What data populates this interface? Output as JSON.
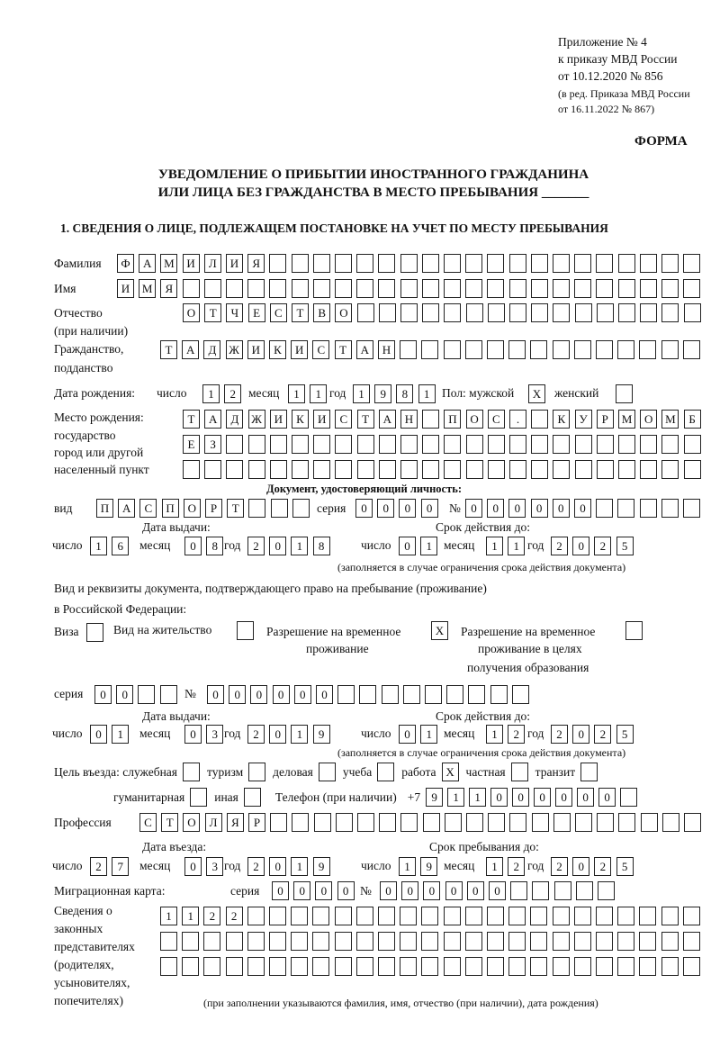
{
  "header": {
    "appendix": "Приложение № 4",
    "order": "к приказу МВД России",
    "order_date": "от 10.12.2020 № 856",
    "edition1": "(в ред. Приказа МВД России",
    "edition2": "от 16.11.2022 № 867)",
    "form": "ФОРМА",
    "title1": "УВЕДОМЛЕНИЕ О ПРИБЫТИИ ИНОСТРАННОГО ГРАЖДАНИНА",
    "title2": "ИЛИ ЛИЦА БЕЗ ГРАЖДАНСТВА В МЕСТО ПРЕБЫВАНИЯ _______",
    "section1": "1. СВЕДЕНИЯ О ЛИЦЕ, ПОДЛЕЖАЩЕМ ПОСТАНОВКЕ НА УЧЕТ ПО МЕСТУ ПРЕБЫВАНИЯ"
  },
  "labels": {
    "surname": "Фамилия",
    "name": "Имя",
    "patronymic1": "Отчество",
    "patronymic2": "(при наличии)",
    "citizenship1": "Гражданство,",
    "citizenship2": "подданство",
    "birth_date": "Дата рождения:",
    "day": "число",
    "month": "месяц",
    "year": "год",
    "sex": "Пол: мужской",
    "female": "женский",
    "birth_place1": "Место рождения:",
    "birth_place2": "государство",
    "birth_place3": "город или другой",
    "birth_place4": "населенный пункт",
    "id_doc": "Документ, удостоверяющий личность:",
    "kind": "вид",
    "series": "серия",
    "number": "№",
    "issue_date": "Дата выдачи:",
    "valid_until": "Срок действия до:",
    "valid_note": "(заполняется в случае ограничения срока действия документа)",
    "right_doc1": "Вид и реквизиты документа, подтверждающего право на пребывание (проживание)",
    "right_doc2": "в Российской Федерации:",
    "visa": "Виза",
    "residence": "Вид на жительство",
    "temp_res1": "Разрешение на временное",
    "temp_res2": "проживание",
    "temp_edu1": "Разрешение на временное",
    "temp_edu2": "проживание в целях",
    "temp_edu3": "получения образования",
    "purpose": "Цель въезда: служебная",
    "tourism": "туризм",
    "business": "деловая",
    "study": "учеба",
    "work": "работа",
    "private": "частная",
    "transit": "транзит",
    "humanitarian": "гуманитарная",
    "other": "иная",
    "phone": "Телефон (при наличии)",
    "phone_prefix": "+7",
    "profession": "Профессия",
    "entry_date": "Дата въезда:",
    "stay_until": "Срок пребывания до:",
    "migration_card": "Миграционная карта:",
    "reps1": "Сведения о",
    "reps2": "законных",
    "reps3": "представителях",
    "reps4": "(родителях,",
    "reps5": "усыновителях,",
    "reps6": "попечителях)",
    "reps_note": "(при заполнении указываются фамилия, имя, отчество (при наличии), дата рождения)"
  },
  "fields": {
    "surname": [
      "Ф",
      "А",
      "М",
      "И",
      "Л",
      "И",
      "Я"
    ],
    "name": [
      "И",
      "М",
      "Я"
    ],
    "patronymic": [
      "О",
      "Т",
      "Ч",
      "Е",
      "С",
      "Т",
      "В",
      "О"
    ],
    "citizenship": [
      "Т",
      "А",
      "Д",
      "Ж",
      "И",
      "К",
      "И",
      "С",
      "Т",
      "А",
      "Н"
    ],
    "birth_day": [
      "1",
      "2"
    ],
    "birth_month": [
      "1",
      "1"
    ],
    "birth_year": [
      "1",
      "9",
      "8",
      "1"
    ],
    "sex_male": [
      "X"
    ],
    "sex_female": [
      ""
    ],
    "birth_place_1": [
      "Т",
      "А",
      "Д",
      "Ж",
      "И",
      "К",
      "И",
      "С",
      "Т",
      "А",
      "Н",
      "",
      "П",
      "О",
      "С",
      ".",
      "",
      "К",
      "У",
      "Р",
      "М",
      "О",
      "М",
      "Б"
    ],
    "birth_place_2": [
      "Е",
      "З"
    ],
    "birth_place_3": [],
    "doc_kind": [
      "П",
      "А",
      "С",
      "П",
      "О",
      "Р",
      "Т"
    ],
    "doc_series": [
      "0",
      "0",
      "0",
      "0"
    ],
    "doc_number": [
      "0",
      "0",
      "0",
      "0",
      "0",
      "0"
    ],
    "doc_issue_day": [
      "1",
      "6"
    ],
    "doc_issue_month": [
      "0",
      "8"
    ],
    "doc_issue_year": [
      "2",
      "0",
      "1",
      "8"
    ],
    "doc_valid_day": [
      "0",
      "1"
    ],
    "doc_valid_month": [
      "1",
      "1"
    ],
    "doc_valid_year": [
      "2",
      "0",
      "2",
      "5"
    ],
    "visa": [
      ""
    ],
    "residence": [
      ""
    ],
    "temp_res": [
      "X"
    ],
    "temp_edu": [
      ""
    ],
    "right_series": [
      "0",
      "0"
    ],
    "right_number": [
      "0",
      "0",
      "0",
      "0",
      "0",
      "0"
    ],
    "right_issue_day": [
      "0",
      "1"
    ],
    "right_issue_month": [
      "0",
      "3"
    ],
    "right_issue_year": [
      "2",
      "0",
      "1",
      "9"
    ],
    "right_valid_day": [
      "0",
      "1"
    ],
    "right_valid_month": [
      "1",
      "2"
    ],
    "right_valid_year": [
      "2",
      "0",
      "2",
      "5"
    ],
    "p_official": [
      ""
    ],
    "p_tourism": [
      ""
    ],
    "p_business": [
      ""
    ],
    "p_study": [
      ""
    ],
    "p_work": [
      "X"
    ],
    "p_private": [
      ""
    ],
    "p_transit": [
      ""
    ],
    "p_humanitarian": [
      ""
    ],
    "p_other": [
      ""
    ],
    "phone": [
      "9",
      "1",
      "1",
      "0",
      "0",
      "0",
      "0",
      "0",
      "0"
    ],
    "profession": [
      "С",
      "Т",
      "О",
      "Л",
      "Я",
      "Р"
    ],
    "entry_day": [
      "2",
      "7"
    ],
    "entry_month": [
      "0",
      "3"
    ],
    "entry_year": [
      "2",
      "0",
      "1",
      "9"
    ],
    "stay_day": [
      "1",
      "9"
    ],
    "stay_month": [
      "1",
      "2"
    ],
    "stay_year": [
      "2",
      "0",
      "2",
      "5"
    ],
    "mig_series": [
      "0",
      "0",
      "0",
      "0"
    ],
    "mig_number": [
      "0",
      "0",
      "0",
      "0",
      "0",
      "0"
    ],
    "reps_1": [
      "1",
      "1",
      "2",
      "2"
    ],
    "reps_2": [],
    "reps_3": []
  }
}
